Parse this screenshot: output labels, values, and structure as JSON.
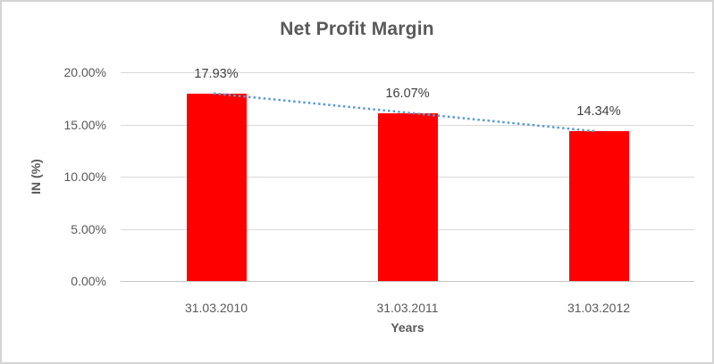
{
  "chart_data": {
    "type": "bar",
    "title": "Net Profit Margin",
    "xlabel": "Years",
    "ylabel": "IN (%)",
    "categories": [
      "31.03.2010",
      "31.03.2011",
      "31.03.2012"
    ],
    "series": [
      {
        "name": "Net Profit Margin",
        "values": [
          17.93,
          16.07,
          14.34
        ]
      }
    ],
    "data_labels": [
      "17.93%",
      "16.07%",
      "14.34%"
    ],
    "ylim": [
      0,
      20
    ],
    "ytick_step": 5,
    "ytick_labels": [
      "0.00%",
      "5.00%",
      "10.00%",
      "15.00%",
      "20.00%"
    ],
    "grid": true,
    "legend_visible": false,
    "trendline": {
      "type": "linear",
      "style": "dotted",
      "start_value": 17.97,
      "end_value": 14.33
    },
    "colors": {
      "bar": "#FF0000",
      "trendline": "#5B9BD5",
      "gridline": "#D9D9D9",
      "axis_line": "#C6C6C6",
      "title_text": "#595959",
      "tick_text": "#595959",
      "data_label_text": "#404040",
      "background": "#FFFFFF",
      "border": "#D4D4D4"
    }
  }
}
